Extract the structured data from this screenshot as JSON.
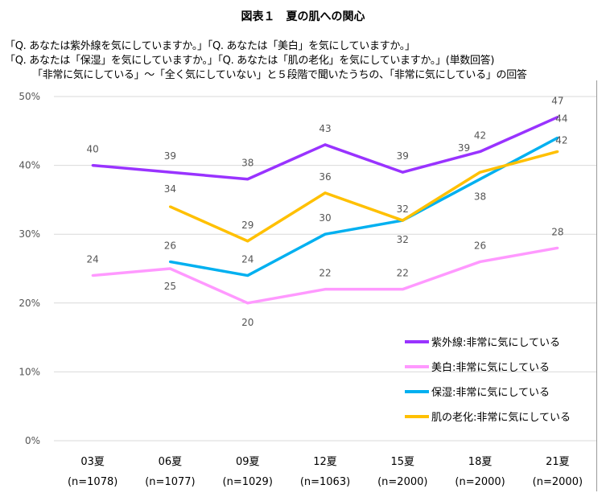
{
  "title": "図表１　夏の肌への関心",
  "question_lines": [
    "「Q. あなたは紫外線を気にしていますか。」「Q. あなたは「美白」を気にしていますか。」",
    "「Q. あなたは「保湿」を気にしていますか。」「Q. あなたは「肌の老化」を気にしていますか。」(単数回答)",
    "「非常に気にしている」～「全く気にしていない」と５段階で聞いたうちの、「非常に気にしている」の回答"
  ],
  "chart_data": {
    "type": "line",
    "categories": [
      "03夏",
      "06夏",
      "09夏",
      "12夏",
      "15夏",
      "18夏",
      "21夏"
    ],
    "category_sublabels": [
      "(n=1078)",
      "(n=1077)",
      "(n=1029)",
      "(n=1063)",
      "(n=2000)",
      "(n=2000)",
      "(n=2000)"
    ],
    "ylim": [
      0,
      50
    ],
    "yticks": [
      "0%",
      "10%",
      "20%",
      "30%",
      "40%",
      "50%"
    ],
    "grid": true,
    "legend_position": "bottom-right",
    "series": [
      {
        "name": "紫外線:非常に気にしている",
        "color": "#9933FF",
        "values": [
          40,
          39,
          38,
          43,
          39,
          42,
          47
        ]
      },
      {
        "name": "美白:非常に気にしている",
        "color": "#FF99FF",
        "values": [
          24,
          25,
          20,
          22,
          22,
          26,
          28
        ]
      },
      {
        "name": "保湿:非常に気にしている",
        "color": "#00B0F0",
        "values": [
          null,
          26,
          24,
          30,
          32,
          38,
          44
        ]
      },
      {
        "name": "肌の老化:非常に気にしている",
        "color": "#FFC000",
        "values": [
          null,
          34,
          29,
          36,
          32,
          39,
          42
        ]
      }
    ]
  }
}
